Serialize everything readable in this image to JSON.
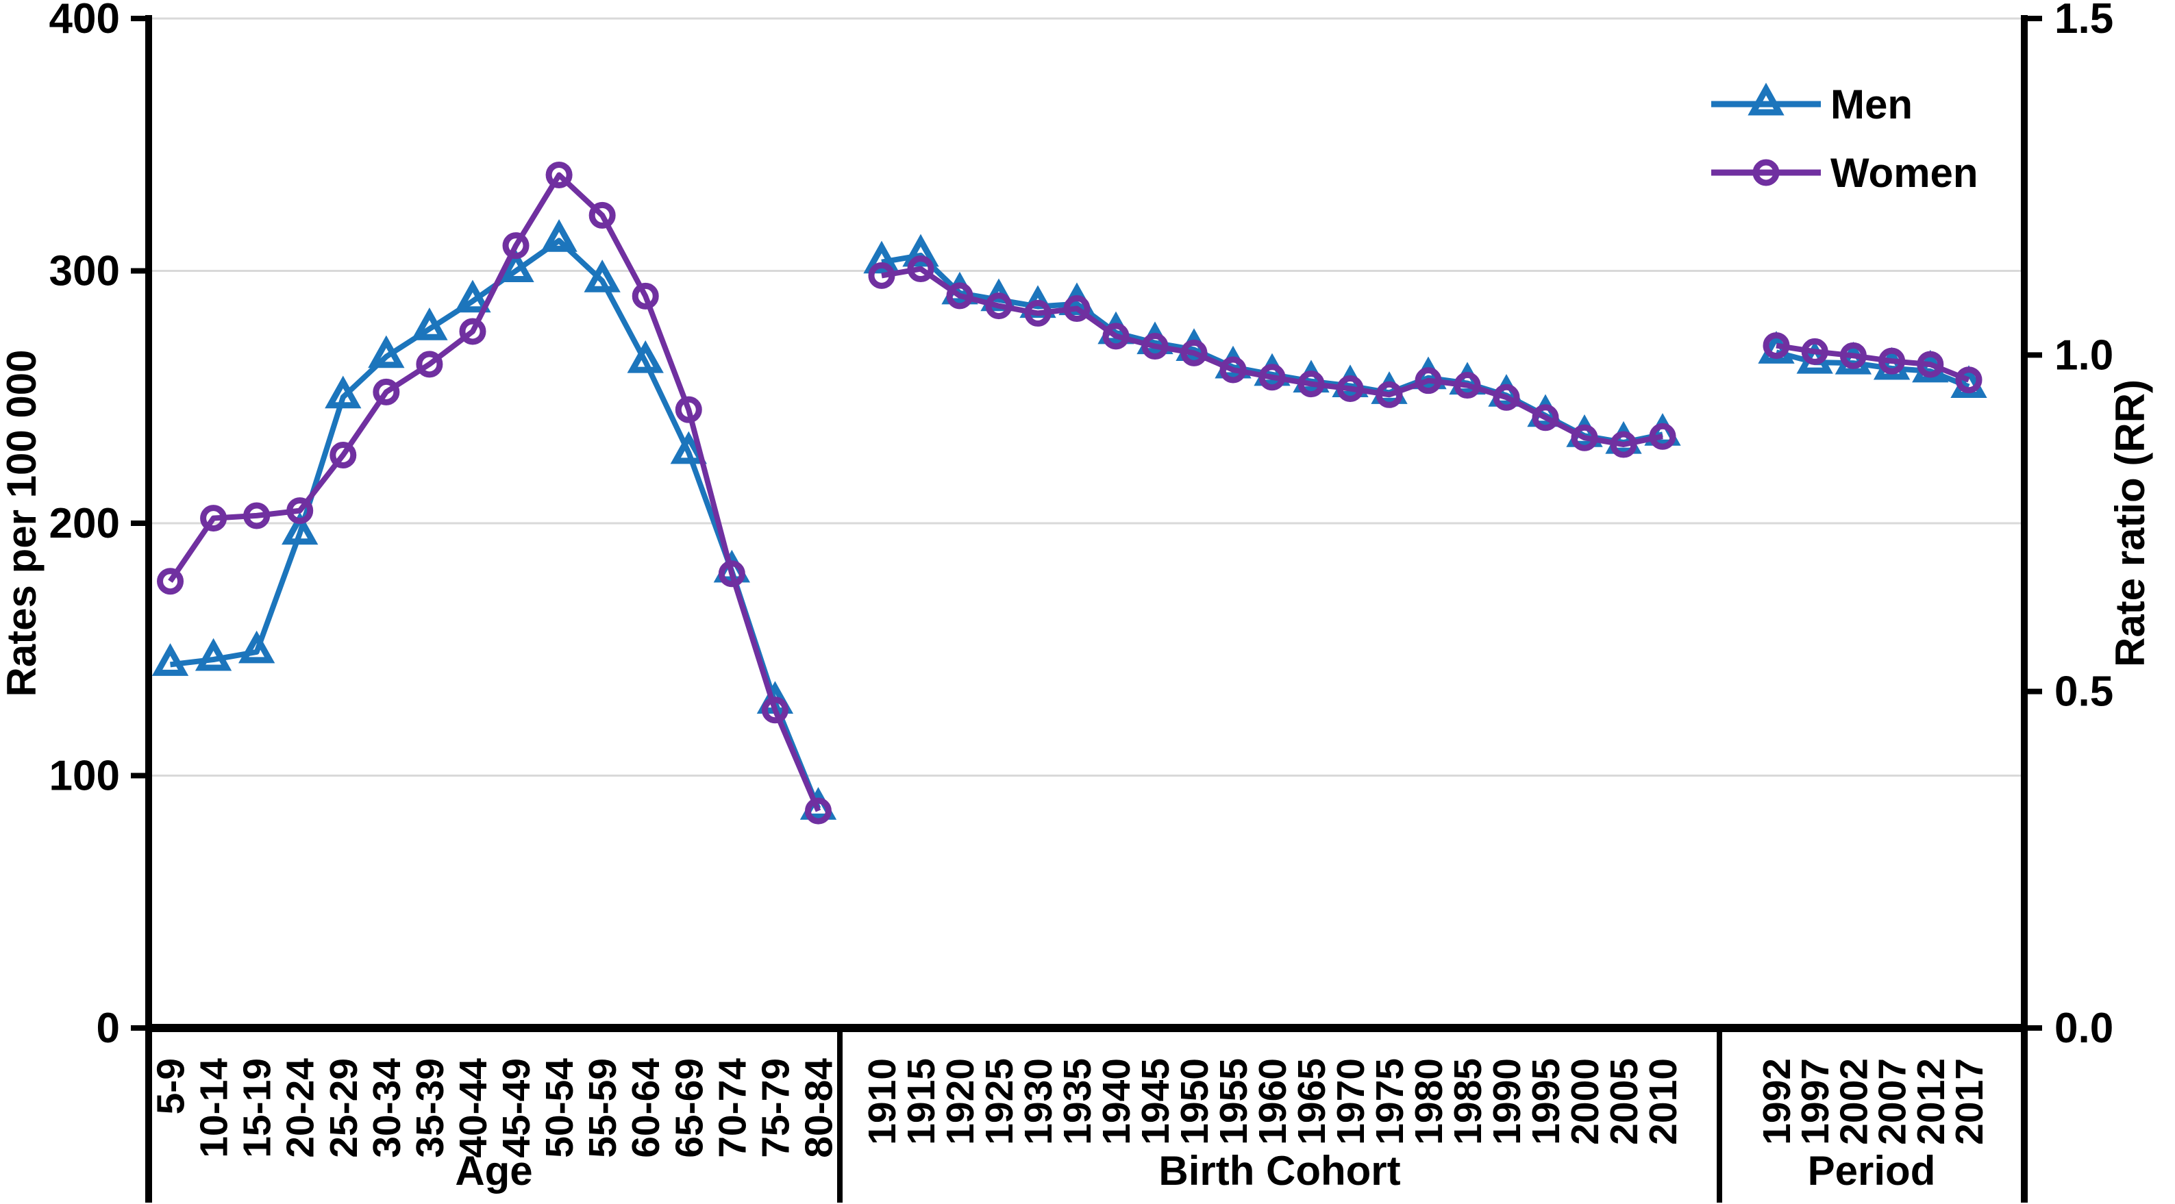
{
  "chart_data": {
    "type": "line",
    "title": "",
    "left_axis": {
      "label": "Rates per 100 000",
      "tick_labels": [
        "0",
        "100",
        "200",
        "300",
        "400"
      ],
      "tick_values": [
        0,
        100,
        200,
        300,
        400
      ],
      "range": [
        0,
        400
      ],
      "gridlines_at": [
        100,
        200,
        300,
        400
      ],
      "grid_on": true
    },
    "right_axis": {
      "label": "Rate ratio (RR)",
      "tick_labels": [
        "0.0",
        "0.5",
        "1.0",
        "1.5"
      ],
      "tick_values": [
        0.0,
        0.5,
        1.0,
        1.5
      ],
      "range": [
        0,
        1.5
      ]
    },
    "legend": {
      "position": "top-right-inside",
      "entries": [
        {
          "label": "Men",
          "marker": "triangle",
          "color": "#1C75BC"
        },
        {
          "label": "Women",
          "marker": "circle",
          "color": "#7030A0"
        }
      ]
    },
    "colors": {
      "men": "#1C75BC",
      "women": "#7030A0",
      "grid": "#D9D9D9",
      "axis": "#000000"
    },
    "panels": [
      {
        "title": "Age",
        "value_axis": "left",
        "unit": "rate per 100 000",
        "categories": [
          "5-9",
          "10-14",
          "15-19",
          "20-24",
          "25-29",
          "30-34",
          "35-39",
          "40-44",
          "45-49",
          "50-54",
          "55-59",
          "60-64",
          "65-69",
          "70-74",
          "75-79",
          "80-84"
        ],
        "series": [
          {
            "name": "Men",
            "values": [
              144,
              146,
              149,
              196,
              250,
              266,
              277,
              288,
              300,
              312,
              296,
              264,
              228,
              181,
              129,
              87
            ]
          },
          {
            "name": "Women",
            "values": [
              177,
              202,
              203,
              205,
              227,
              252,
              263,
              276,
              310,
              338,
              322,
              290,
              245,
              180,
              126,
              86
            ]
          }
        ]
      },
      {
        "title": "Birth Cohort",
        "value_axis": "right",
        "unit": "rate ratio (RR)",
        "categories": [
          "1910",
          "1915",
          "1920",
          "1925",
          "1930",
          "1935",
          "1940",
          "1945",
          "1950",
          "1955",
          "1960",
          "1965",
          "1970",
          "1975",
          "1980",
          "1985",
          "1990",
          "1995",
          "2000",
          "2005",
          "2010"
        ],
        "series": [
          {
            "name": "Men",
            "values": [
              1.138,
              1.148,
              1.092,
              1.082,
              1.072,
              1.076,
              1.033,
              1.018,
              1.008,
              0.982,
              0.971,
              0.961,
              0.954,
              0.944,
              0.966,
              0.958,
              0.94,
              0.91,
              0.88,
              0.87,
              0.882
            ]
          },
          {
            "name": "Women",
            "values": [
              1.118,
              1.128,
              1.088,
              1.073,
              1.062,
              1.069,
              1.028,
              1.013,
              1.003,
              0.978,
              0.967,
              0.957,
              0.95,
              0.941,
              0.962,
              0.955,
              0.937,
              0.907,
              0.877,
              0.867,
              0.879
            ]
          }
        ]
      },
      {
        "title": "Period",
        "value_axis": "right",
        "unit": "rate ratio (RR)",
        "categories": [
          "1992",
          "1997",
          "2002",
          "2007",
          "2012",
          "2017"
        ],
        "series": [
          {
            "name": "Men",
            "values": [
              1.004,
              0.989,
              0.988,
              0.98,
              0.976,
              0.953
            ]
          },
          {
            "name": "Women",
            "values": [
              1.014,
              1.005,
              0.999,
              0.991,
              0.986,
              0.963
            ]
          }
        ]
      }
    ]
  }
}
